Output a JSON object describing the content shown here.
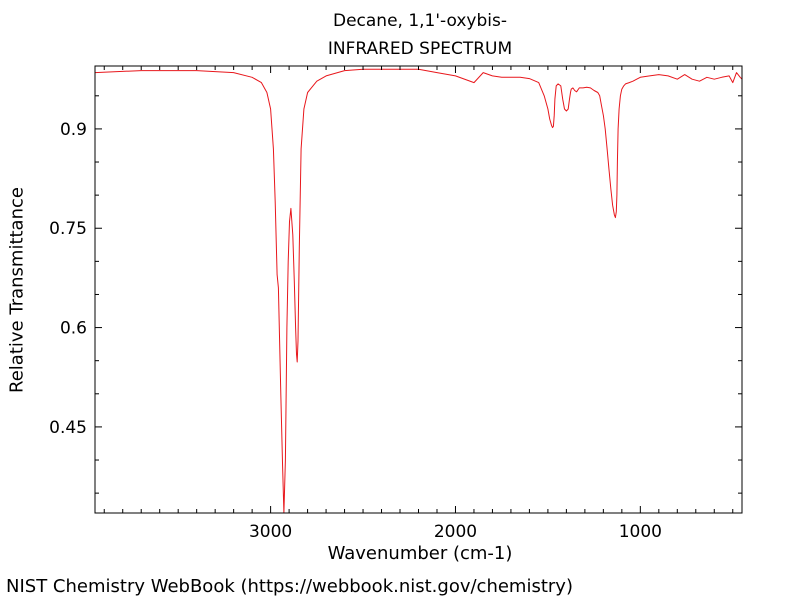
{
  "chart_data": {
    "type": "line",
    "title": "Decane, 1,1'-oxybis-",
    "subtitle": "INFRARED SPECTRUM",
    "xlabel": "Wavenumber (cm-1)",
    "ylabel": "Relative Transmittance",
    "xlim": [
      3950,
      450
    ],
    "ylim": [
      0.32,
      0.995
    ],
    "x_ticks": [
      3000,
      2000,
      1000
    ],
    "y_ticks": [
      0.45,
      0.6,
      0.75,
      0.9
    ],
    "grid": false,
    "series": [
      {
        "color": "#e8171c",
        "x": [
          3950,
          3700,
          3400,
          3200,
          3100,
          3050,
          3020,
          3000,
          2985,
          2975,
          2965,
          2958,
          2945,
          2935,
          2928,
          2920,
          2912,
          2905,
          2898,
          2890,
          2880,
          2872,
          2865,
          2860,
          2856,
          2852,
          2845,
          2835,
          2820,
          2800,
          2780,
          2750,
          2700,
          2600,
          2500,
          2400,
          2300,
          2200,
          2100,
          2000,
          1900,
          1850,
          1800,
          1750,
          1700,
          1650,
          1600,
          1550,
          1520,
          1500,
          1490,
          1480,
          1475,
          1470,
          1466,
          1462,
          1455,
          1445,
          1430,
          1420,
          1410,
          1400,
          1390,
          1383,
          1378,
          1374,
          1365,
          1355,
          1345,
          1330,
          1310,
          1290,
          1270,
          1250,
          1230,
          1220,
          1210,
          1200,
          1190,
          1180,
          1170,
          1160,
          1150,
          1140,
          1135,
          1130,
          1127,
          1124,
          1120,
          1115,
          1108,
          1100,
          1090,
          1080,
          1060,
          1040,
          1000,
          950,
          900,
          850,
          800,
          760,
          720,
          680,
          640,
          600,
          560,
          520,
          500,
          480,
          460,
          450
        ],
        "y": [
          0.985,
          0.988,
          0.988,
          0.985,
          0.978,
          0.97,
          0.955,
          0.93,
          0.87,
          0.79,
          0.68,
          0.66,
          0.5,
          0.39,
          0.32,
          0.4,
          0.6,
          0.7,
          0.76,
          0.78,
          0.74,
          0.67,
          0.6,
          0.56,
          0.548,
          0.58,
          0.72,
          0.87,
          0.93,
          0.955,
          0.962,
          0.972,
          0.98,
          0.988,
          0.99,
          0.99,
          0.99,
          0.99,
          0.985,
          0.98,
          0.97,
          0.985,
          0.98,
          0.978,
          0.978,
          0.978,
          0.976,
          0.97,
          0.95,
          0.93,
          0.915,
          0.905,
          0.902,
          0.904,
          0.92,
          0.945,
          0.965,
          0.968,
          0.965,
          0.945,
          0.93,
          0.927,
          0.93,
          0.945,
          0.955,
          0.96,
          0.962,
          0.958,
          0.956,
          0.962,
          0.962,
          0.963,
          0.962,
          0.958,
          0.955,
          0.95,
          0.935,
          0.92,
          0.9,
          0.87,
          0.84,
          0.81,
          0.785,
          0.77,
          0.766,
          0.775,
          0.8,
          0.85,
          0.9,
          0.93,
          0.95,
          0.96,
          0.965,
          0.968,
          0.97,
          0.972,
          0.978,
          0.98,
          0.982,
          0.98,
          0.975,
          0.982,
          0.975,
          0.972,
          0.978,
          0.975,
          0.978,
          0.98,
          0.97,
          0.985,
          0.978,
          0.975
        ]
      }
    ]
  },
  "footer": "NIST Chemistry WebBook (https://webbook.nist.gov/chemistry)"
}
